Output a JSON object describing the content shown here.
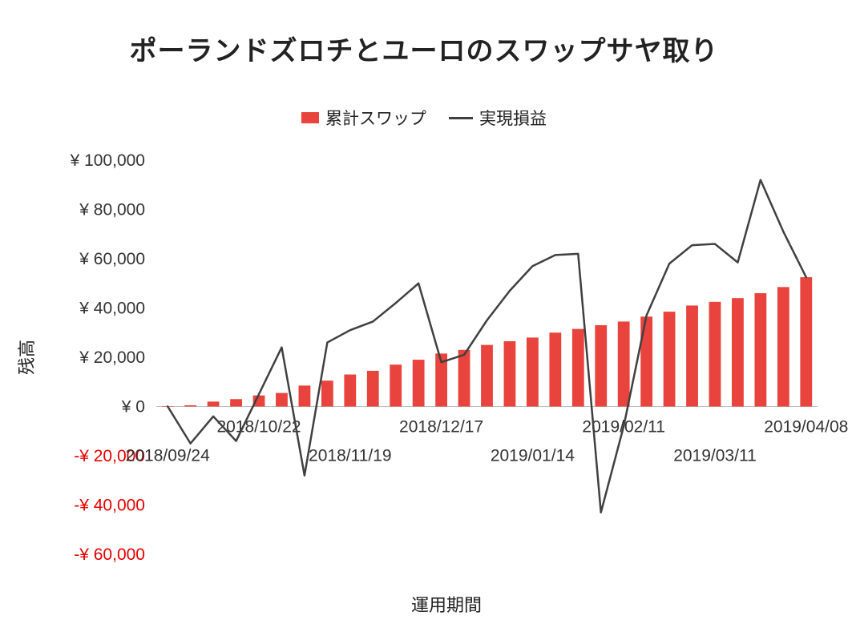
{
  "title": "ポーランドズロチとユーロのスワップサヤ取り",
  "legend": {
    "items": [
      {
        "label": "累計スワップ",
        "type": "bar",
        "color": "#e8433c"
      },
      {
        "label": "実現損益",
        "type": "line",
        "color": "#404040"
      }
    ]
  },
  "x_axis_title": "運用期間",
  "y_axis_title": "残高",
  "chart_data": {
    "type": "bar+line",
    "title": "ポーランドズロチとユーロのスワップサヤ取り",
    "xlabel": "運用期間",
    "ylabel": "残高",
    "ylim": [
      -60000,
      100000
    ],
    "grid": false,
    "legend_position": "top",
    "negative_tick_color": "#e60000",
    "tick_color": "#333333",
    "axis_line_color": "#bfbfbf",
    "x": [
      "2018/09/24",
      "2018/10/01",
      "2018/10/08",
      "2018/10/15",
      "2018/10/22",
      "2018/10/29",
      "2018/11/05",
      "2018/11/12",
      "2018/11/19",
      "2018/11/26",
      "2018/12/03",
      "2018/12/10",
      "2018/12/17",
      "2018/12/24",
      "2018/12/31",
      "2019/01/07",
      "2019/01/14",
      "2019/01/21",
      "2019/01/28",
      "2019/02/04",
      "2019/02/11",
      "2019/02/18",
      "2019/02/25",
      "2019/03/04",
      "2019/03/11",
      "2019/03/18",
      "2019/03/25",
      "2019/04/01",
      "2019/04/08"
    ],
    "x_tick_every": 4,
    "x_tick_labels_row_upper": [
      "2018/10/22",
      "2018/12/17",
      "2019/02/11",
      "2019/04/08"
    ],
    "x_tick_labels_row_lower": [
      "2018/09/24",
      "2018/11/19",
      "2019/01/14",
      "2019/03/11"
    ],
    "y_ticks": [
      100000,
      80000,
      60000,
      40000,
      20000,
      0,
      -20000,
      -40000,
      -60000
    ],
    "y_tick_labels": [
      "¥ 100,000",
      "¥ 80,000",
      "¥ 60,000",
      "¥ 40,000",
      "¥ 20,000",
      "¥ 0",
      "-¥ 20,000",
      "-¥ 40,000",
      "-¥ 60,000"
    ],
    "series": [
      {
        "name": "累計スワップ",
        "type": "bar",
        "color": "#e8433c",
        "values": [
          0,
          500,
          2000,
          3000,
          4500,
          5500,
          8500,
          10500,
          13000,
          14500,
          17000,
          19000,
          21500,
          23000,
          25000,
          26500,
          28000,
          30000,
          31500,
          33000,
          34500,
          36500,
          38500,
          41000,
          42500,
          44000,
          46000,
          48500,
          52500
        ]
      },
      {
        "name": "実現損益",
        "type": "line",
        "color": "#404040",
        "values": [
          0,
          -15000,
          -4000,
          -14000,
          5000,
          24000,
          -28000,
          26000,
          31000,
          34500,
          42000,
          50000,
          18000,
          21000,
          35000,
          47000,
          57000,
          61500,
          62000,
          -43000,
          -8000,
          37000,
          58000,
          65500,
          66000,
          58500,
          92000,
          71000,
          52500
        ]
      }
    ]
  }
}
